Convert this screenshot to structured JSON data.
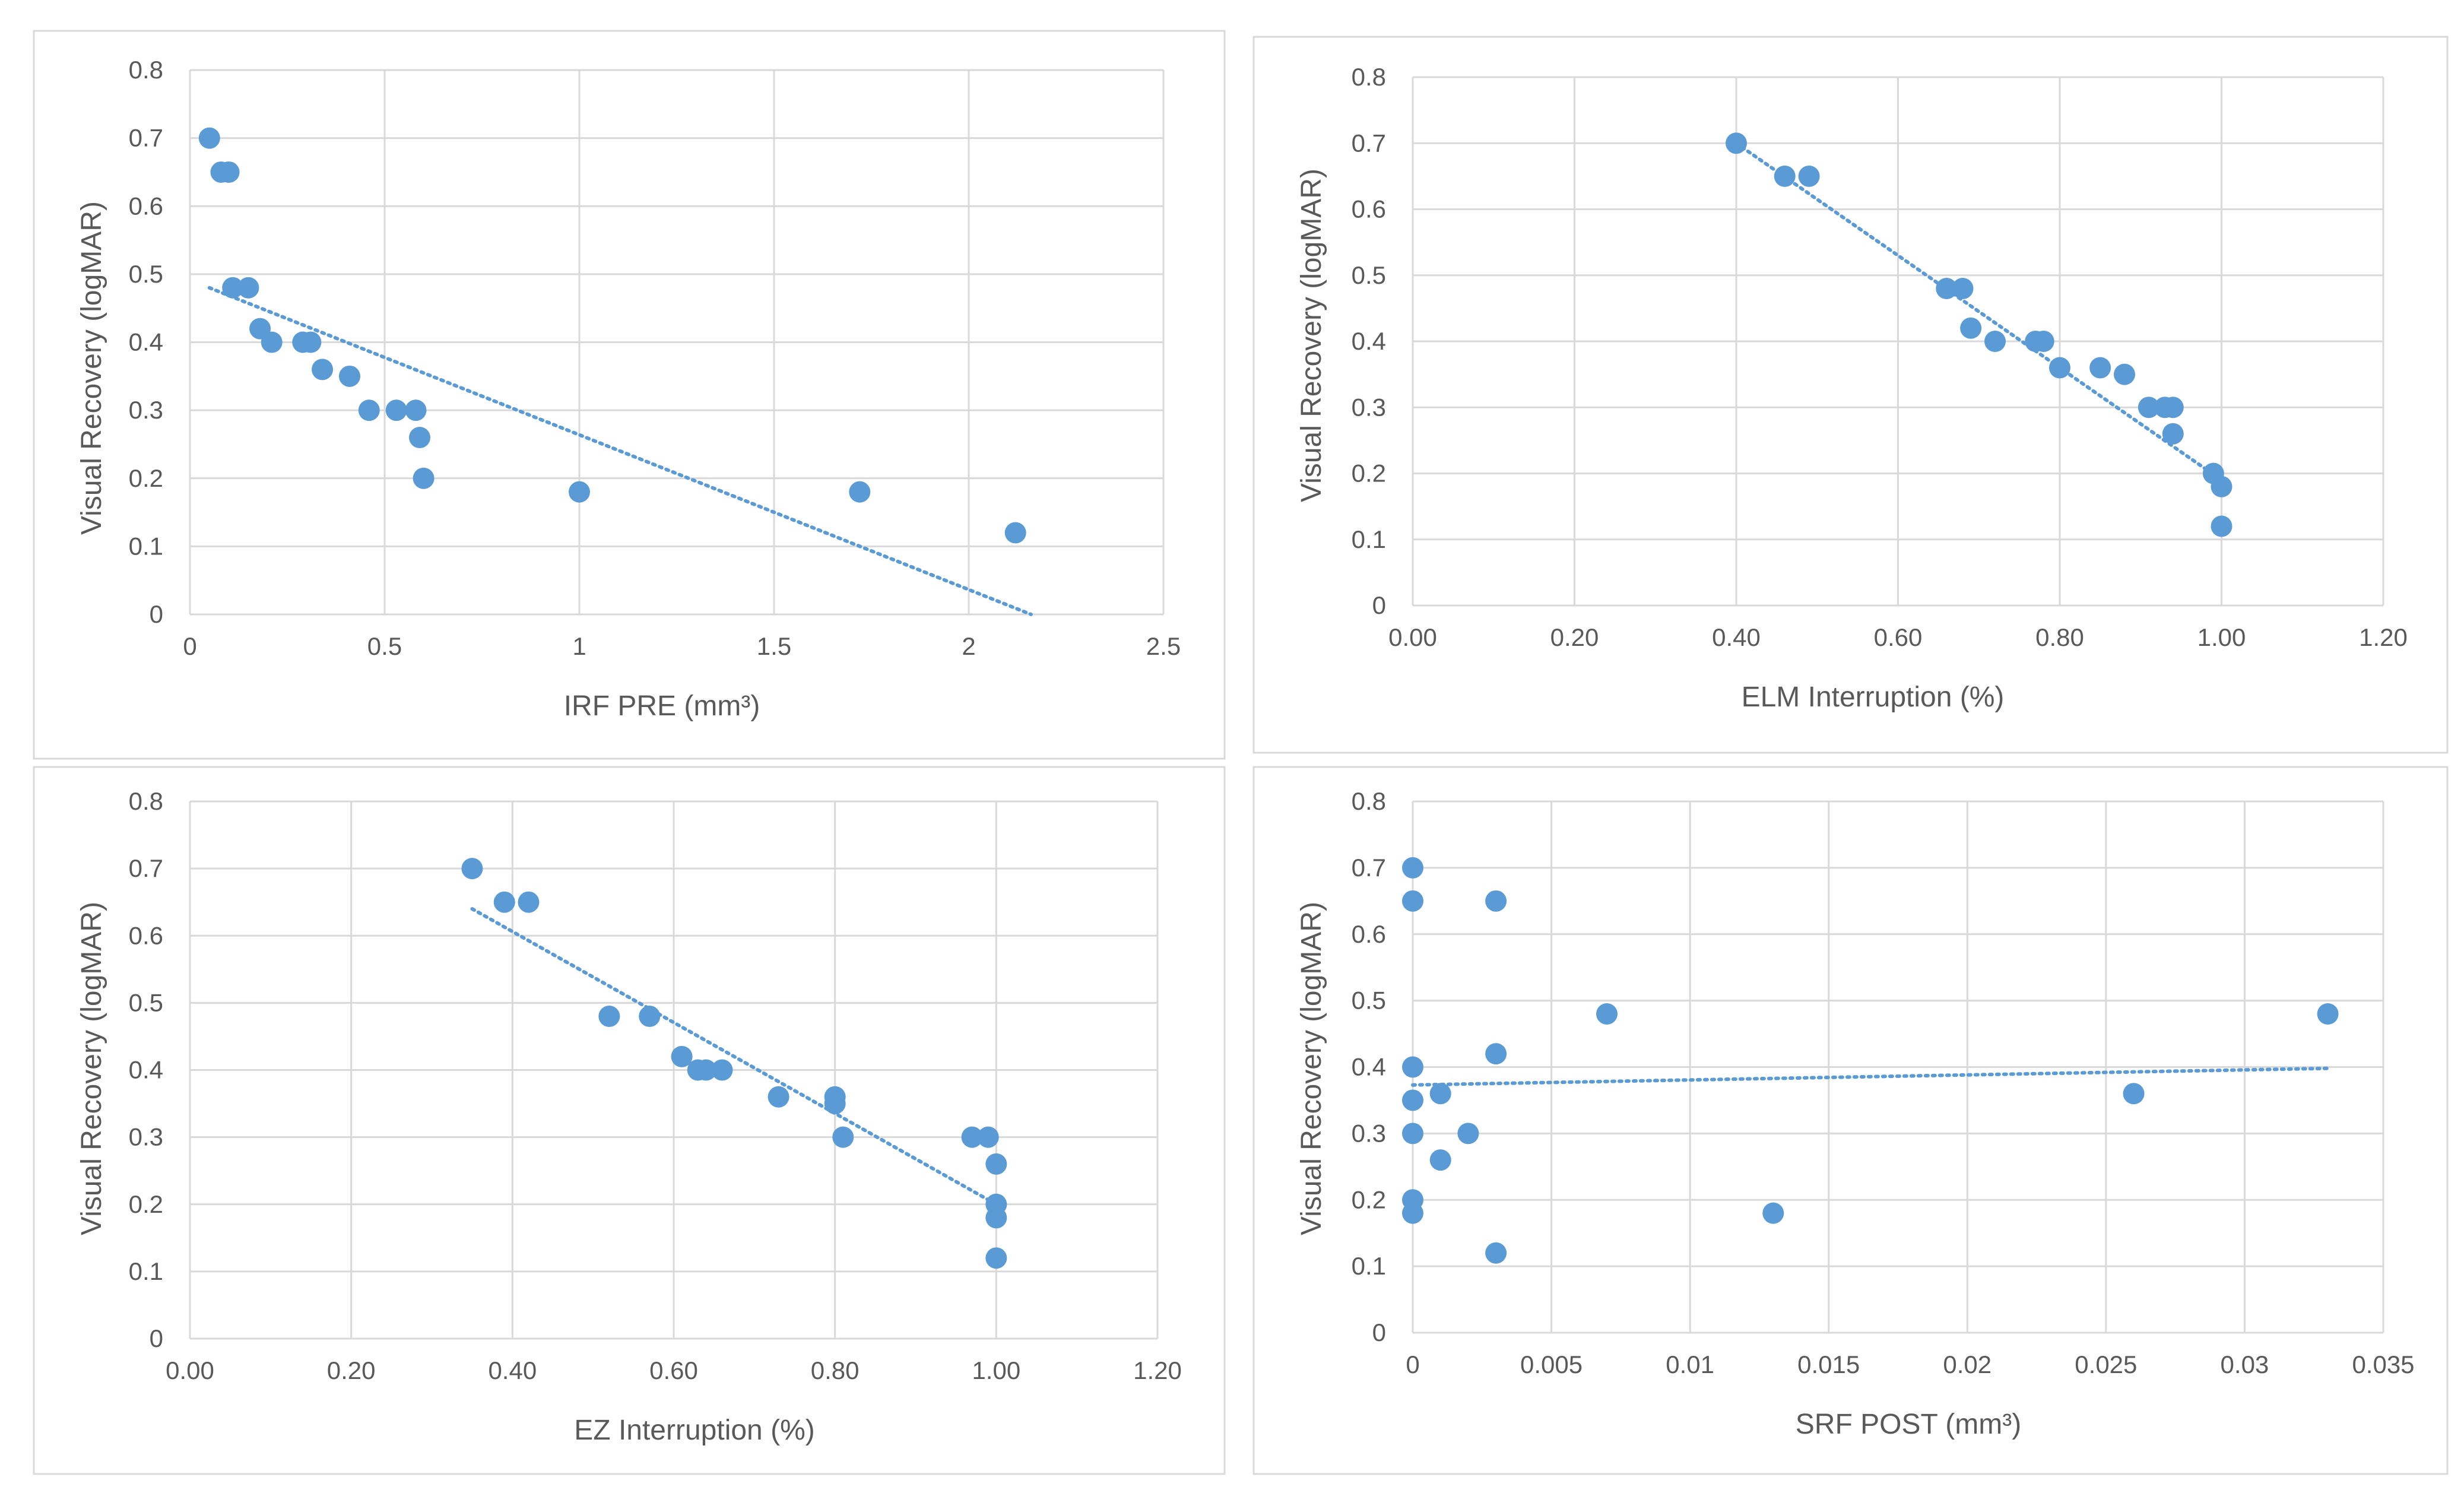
{
  "colors": {
    "series": "#5b9bd5",
    "grid": "#d9d9d9",
    "text": "#595959"
  },
  "chart_data": [
    {
      "type": "scatter",
      "xlabel": "IRF PRE (mm³)",
      "ylabel": "Visual Recovery (logMAR)",
      "xlim": [
        0,
        2.5
      ],
      "ylim": [
        0,
        0.8
      ],
      "xticks": [
        0,
        0.5,
        1,
        1.5,
        2,
        2.5
      ],
      "xtick_labels": [
        "0",
        "0.5",
        "1",
        "1.5",
        "2",
        "2.5"
      ],
      "yticks": [
        0,
        0.1,
        0.2,
        0.3,
        0.4,
        0.5,
        0.6,
        0.7,
        0.8
      ],
      "ytick_labels": [
        "0",
        "0.1",
        "0.2",
        "0.3",
        "0.4",
        "0.5",
        "0.6",
        "0.7",
        "0.8"
      ],
      "points": [
        [
          0.05,
          0.7
        ],
        [
          0.08,
          0.65
        ],
        [
          0.1,
          0.65
        ],
        [
          0.11,
          0.48
        ],
        [
          0.15,
          0.48
        ],
        [
          0.18,
          0.42
        ],
        [
          0.21,
          0.4
        ],
        [
          0.29,
          0.4
        ],
        [
          0.31,
          0.4
        ],
        [
          0.34,
          0.36
        ],
        [
          0.41,
          0.35
        ],
        [
          0.46,
          0.3
        ],
        [
          0.53,
          0.3
        ],
        [
          0.58,
          0.3
        ],
        [
          0.59,
          0.26
        ],
        [
          0.6,
          0.2
        ],
        [
          1.0,
          0.18
        ],
        [
          1.72,
          0.18
        ],
        [
          2.12,
          0.12
        ]
      ],
      "trendline": {
        "type": "linear",
        "x": [
          0.05,
          2.16
        ],
        "y": [
          0.48,
          0.0
        ]
      }
    },
    {
      "type": "scatter",
      "xlabel": "ELM Interruption (%)",
      "ylabel": "Visual Recovery (logMAR)",
      "xlim": [
        0,
        1.2
      ],
      "ylim": [
        0,
        0.8
      ],
      "xticks": [
        0,
        0.2,
        0.4,
        0.6,
        0.8,
        1.0,
        1.2
      ],
      "xtick_labels": [
        "0.00",
        "0.20",
        "0.40",
        "0.60",
        "0.80",
        "1.00",
        "1.20"
      ],
      "yticks": [
        0,
        0.1,
        0.2,
        0.3,
        0.4,
        0.5,
        0.6,
        0.7,
        0.8
      ],
      "ytick_labels": [
        "0",
        "0.1",
        "0.2",
        "0.3",
        "0.4",
        "0.5",
        "0.6",
        "0.7",
        "0.8"
      ],
      "points": [
        [
          0.4,
          0.7
        ],
        [
          0.46,
          0.65
        ],
        [
          0.49,
          0.65
        ],
        [
          0.66,
          0.48
        ],
        [
          0.68,
          0.48
        ],
        [
          0.69,
          0.42
        ],
        [
          0.72,
          0.4
        ],
        [
          0.77,
          0.4
        ],
        [
          0.78,
          0.4
        ],
        [
          0.8,
          0.36
        ],
        [
          0.85,
          0.36
        ],
        [
          0.88,
          0.35
        ],
        [
          0.91,
          0.3
        ],
        [
          0.93,
          0.3
        ],
        [
          0.94,
          0.3
        ],
        [
          0.94,
          0.26
        ],
        [
          0.99,
          0.2
        ],
        [
          1.0,
          0.18
        ],
        [
          1.0,
          0.12
        ]
      ],
      "trendline": {
        "type": "linear",
        "x": [
          0.4,
          1.0
        ],
        "y": [
          0.7,
          0.19
        ]
      }
    },
    {
      "type": "scatter",
      "xlabel": "EZ Interruption (%)",
      "ylabel": "Visual Recovery (logMAR)",
      "xlim": [
        0,
        1.2
      ],
      "ylim": [
        0,
        0.8
      ],
      "xticks": [
        0,
        0.2,
        0.4,
        0.6,
        0.8,
        1.0,
        1.2
      ],
      "xtick_labels": [
        "0.00",
        "0.20",
        "0.40",
        "0.60",
        "0.80",
        "1.00",
        "1.20"
      ],
      "yticks": [
        0,
        0.1,
        0.2,
        0.3,
        0.4,
        0.5,
        0.6,
        0.7,
        0.8
      ],
      "ytick_labels": [
        "0",
        "0.1",
        "0.2",
        "0.3",
        "0.4",
        "0.5",
        "0.6",
        "0.7",
        "0.8"
      ],
      "points": [
        [
          0.35,
          0.7
        ],
        [
          0.39,
          0.65
        ],
        [
          0.42,
          0.65
        ],
        [
          0.52,
          0.48
        ],
        [
          0.57,
          0.48
        ],
        [
          0.61,
          0.42
        ],
        [
          0.63,
          0.4
        ],
        [
          0.64,
          0.4
        ],
        [
          0.66,
          0.4
        ],
        [
          0.73,
          0.36
        ],
        [
          0.8,
          0.36
        ],
        [
          0.8,
          0.35
        ],
        [
          0.81,
          0.3
        ],
        [
          0.97,
          0.3
        ],
        [
          0.99,
          0.3
        ],
        [
          1.0,
          0.26
        ],
        [
          1.0,
          0.2
        ],
        [
          1.0,
          0.18
        ],
        [
          1.0,
          0.12
        ]
      ],
      "trendline": {
        "type": "linear",
        "x": [
          0.35,
          1.0
        ],
        "y": [
          0.64,
          0.2
        ]
      }
    },
    {
      "type": "scatter",
      "xlabel": "SRF POST (mm³)",
      "ylabel": "Visual Recovery (logMAR)",
      "xlim": [
        0,
        0.035
      ],
      "ylim": [
        0,
        0.8
      ],
      "xticks": [
        0,
        0.005,
        0.01,
        0.015,
        0.02,
        0.025,
        0.03,
        0.035
      ],
      "xtick_labels": [
        "0",
        "0.005",
        "0.01",
        "0.015",
        "0.02",
        "0.025",
        "0.03",
        "0.035"
      ],
      "yticks": [
        0,
        0.1,
        0.2,
        0.3,
        0.4,
        0.5,
        0.6,
        0.7,
        0.8
      ],
      "ytick_labels": [
        "0",
        "0.1",
        "0.2",
        "0.3",
        "0.4",
        "0.5",
        "0.6",
        "0.7",
        "0.8"
      ],
      "points": [
        [
          0,
          0.7
        ],
        [
          0,
          0.65
        ],
        [
          0,
          0.4
        ],
        [
          0,
          0.35
        ],
        [
          0,
          0.3
        ],
        [
          0,
          0.2
        ],
        [
          0,
          0.18
        ],
        [
          0.001,
          0.36
        ],
        [
          0.001,
          0.26
        ],
        [
          0.002,
          0.3
        ],
        [
          0.003,
          0.65
        ],
        [
          0.003,
          0.42
        ],
        [
          0.003,
          0.12
        ],
        [
          0.007,
          0.48
        ],
        [
          0.013,
          0.18
        ],
        [
          0.026,
          0.36
        ],
        [
          0.033,
          0.48
        ]
      ],
      "trendline": {
        "type": "linear",
        "x": [
          0,
          0.033
        ],
        "y": [
          0.373,
          0.398
        ]
      }
    }
  ]
}
